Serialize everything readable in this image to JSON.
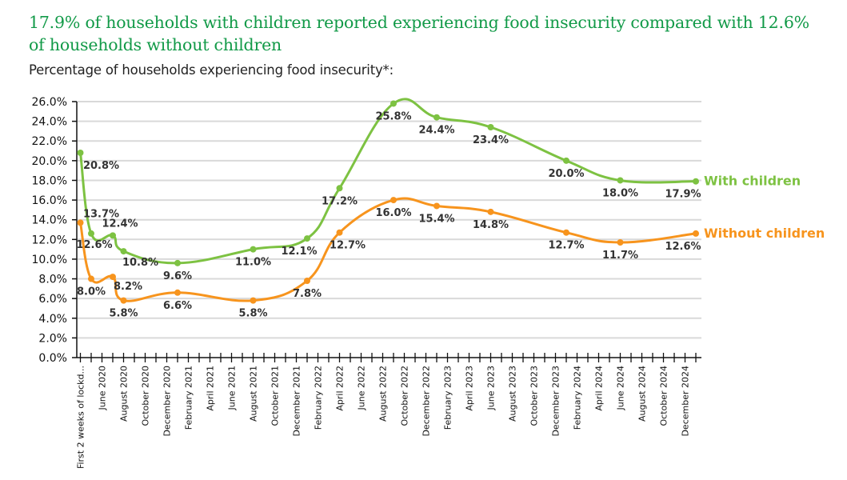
{
  "chart_data": {
    "type": "line",
    "title": "17.9% of households with children reported experiencing food insecurity compared with 12.6% of households without children",
    "subtitle": "Percentage of households experiencing food insecurity*:",
    "xlabel": "",
    "ylabel": "",
    "ylim": [
      0,
      26
    ],
    "y_ticks": [
      "0.0%",
      "2.0%",
      "4.0%",
      "6.0%",
      "8.0%",
      "10.0%",
      "12.0%",
      "14.0%",
      "16.0%",
      "18.0%",
      "20.0%",
      "22.0%",
      "24.0%",
      "26.0%"
    ],
    "x_range": [
      "2020-04",
      "2025-01"
    ],
    "x_tick_labels": [
      {
        "x": "2020-04",
        "label": "First 2 weeks of lockd..."
      },
      {
        "x": "2020-06",
        "label": "June 2020"
      },
      {
        "x": "2020-08",
        "label": "August 2020"
      },
      {
        "x": "2020-10",
        "label": "October 2020"
      },
      {
        "x": "2020-12",
        "label": "December 2020"
      },
      {
        "x": "2021-02",
        "label": "February 2021"
      },
      {
        "x": "2021-04",
        "label": "April 2021"
      },
      {
        "x": "2021-06",
        "label": "June 2021"
      },
      {
        "x": "2021-08",
        "label": "August 2021"
      },
      {
        "x": "2021-10",
        "label": "October 2021"
      },
      {
        "x": "2021-12",
        "label": "December 2021"
      },
      {
        "x": "2022-02",
        "label": "February 2022"
      },
      {
        "x": "2022-04",
        "label": "April 2022"
      },
      {
        "x": "2022-06",
        "label": "June 2022"
      },
      {
        "x": "2022-08",
        "label": "August 2022"
      },
      {
        "x": "2022-10",
        "label": "October 2022"
      },
      {
        "x": "2022-12",
        "label": "December 2022"
      },
      {
        "x": "2023-02",
        "label": "February 2023"
      },
      {
        "x": "2023-04",
        "label": "April 2023"
      },
      {
        "x": "2023-06",
        "label": "June 2023"
      },
      {
        "x": "2023-08",
        "label": "August 2023"
      },
      {
        "x": "2023-10",
        "label": "October 2023"
      },
      {
        "x": "2023-12",
        "label": "December 2023"
      },
      {
        "x": "2024-02",
        "label": "February 2024"
      },
      {
        "x": "2024-04",
        "label": "April 2024"
      },
      {
        "x": "2024-06",
        "label": "June 2024"
      },
      {
        "x": "2024-08",
        "label": "August 2024"
      },
      {
        "x": "2024-10",
        "label": "October 2024"
      },
      {
        "x": "2024-12",
        "label": "December 2024"
      }
    ],
    "grid": true,
    "legend": "inline-right",
    "series": [
      {
        "name": "With children",
        "color": "#7dc242",
        "points": [
          {
            "x": "2020-04",
            "y": 20.8,
            "label": "20.8%"
          },
          {
            "x": "2020-05",
            "y": 12.6,
            "label": "12.6%"
          },
          {
            "x": "2020-07",
            "y": 12.4,
            "label": "12.4%"
          },
          {
            "x": "2020-08",
            "y": 10.8,
            "label": "10.8%"
          },
          {
            "x": "2021-01",
            "y": 9.6,
            "label": "9.6%"
          },
          {
            "x": "2021-08",
            "y": 11.0,
            "label": "11.0%"
          },
          {
            "x": "2022-01",
            "y": 12.1,
            "label": "12.1%"
          },
          {
            "x": "2022-04",
            "y": 17.2,
            "label": "17.2%"
          },
          {
            "x": "2022-09",
            "y": 25.8,
            "label": "25.8%"
          },
          {
            "x": "2023-01",
            "y": 24.4,
            "label": "24.4%"
          },
          {
            "x": "2023-06",
            "y": 23.4,
            "label": "23.4%"
          },
          {
            "x": "2024-01",
            "y": 20.0,
            "label": "20.0%"
          },
          {
            "x": "2024-06",
            "y": 18.0,
            "label": "18.0%"
          },
          {
            "x": "2025-01",
            "y": 17.9,
            "label": "17.9%"
          }
        ]
      },
      {
        "name": "Without children",
        "color": "#f7941d",
        "points": [
          {
            "x": "2020-04",
            "y": 13.7,
            "label": "13.7%"
          },
          {
            "x": "2020-05",
            "y": 8.0,
            "label": "8.0%"
          },
          {
            "x": "2020-07",
            "y": 8.2,
            "label": "8.2%"
          },
          {
            "x": "2020-08",
            "y": 5.8,
            "label": "5.8%"
          },
          {
            "x": "2021-01",
            "y": 6.6,
            "label": "6.6%"
          },
          {
            "x": "2021-08",
            "y": 5.8,
            "label": "5.8%"
          },
          {
            "x": "2022-01",
            "y": 7.8,
            "label": "7.8%"
          },
          {
            "x": "2022-04",
            "y": 12.7,
            "label": "12.7%"
          },
          {
            "x": "2022-09",
            "y": 16.0,
            "label": "16.0%"
          },
          {
            "x": "2023-01",
            "y": 15.4,
            "label": "15.4%"
          },
          {
            "x": "2023-06",
            "y": 14.8,
            "label": "14.8%"
          },
          {
            "x": "2024-01",
            "y": 12.7,
            "label": "12.7%"
          },
          {
            "x": "2024-06",
            "y": 11.7,
            "label": "11.7%"
          },
          {
            "x": "2025-01",
            "y": 12.6,
            "label": "12.6%"
          }
        ]
      }
    ]
  }
}
